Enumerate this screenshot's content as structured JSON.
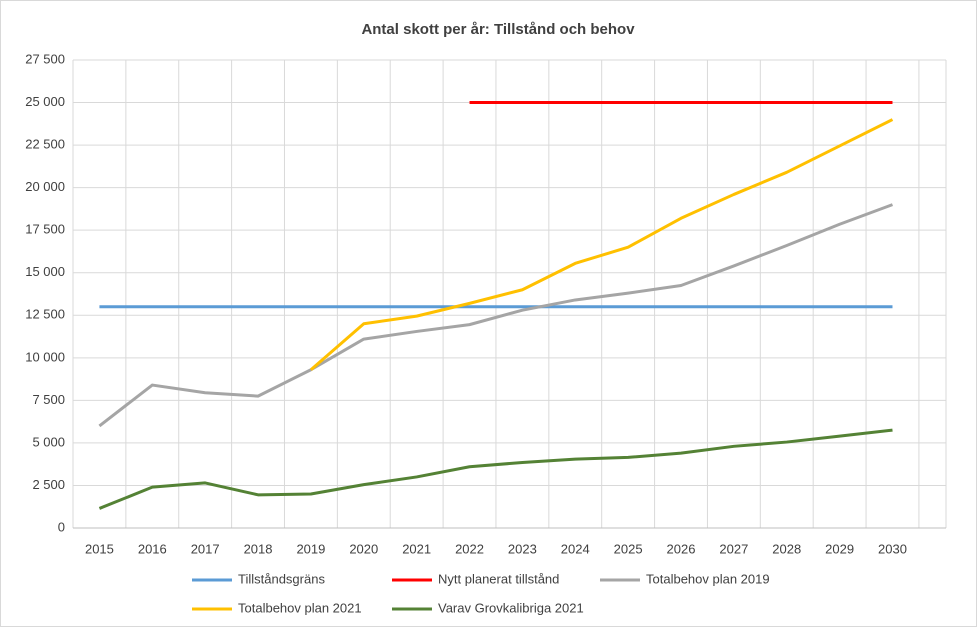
{
  "chart_data": {
    "type": "line",
    "title": "Antal skott per år: Tillstånd och behov",
    "categories": [
      "2015",
      "2016",
      "2017",
      "2018",
      "2019",
      "2020",
      "2021",
      "2022",
      "2023",
      "2024",
      "2025",
      "2026",
      "2027",
      "2028",
      "2029",
      "2030"
    ],
    "series": [
      {
        "name": "Tillståndsgräns",
        "color": "#5b9bd5",
        "values": [
          13000,
          13000,
          13000,
          13000,
          13000,
          13000,
          13000,
          13000,
          13000,
          13000,
          13000,
          13000,
          13000,
          13000,
          13000,
          13000
        ]
      },
      {
        "name": "Nytt planerat tillstånd",
        "color": "#ff0000",
        "values": [
          null,
          null,
          null,
          null,
          null,
          null,
          null,
          25000,
          25000,
          25000,
          25000,
          25000,
          25000,
          25000,
          25000,
          25000
        ]
      },
      {
        "name": "Totalbehov plan 2019",
        "color": "#a5a5a5",
        "values": [
          6000,
          8400,
          7950,
          7750,
          9300,
          11100,
          11550,
          11950,
          12800,
          13400,
          13800,
          14250,
          15400,
          16600,
          17850,
          19000
        ]
      },
      {
        "name": "Totalbehov plan 2021",
        "color": "#ffc000",
        "values": [
          null,
          null,
          null,
          null,
          9300,
          12000,
          12450,
          13200,
          14000,
          15550,
          16500,
          18200,
          19600,
          20900,
          22450,
          24000
        ]
      },
      {
        "name": "Varav Grovkalibriga 2021",
        "color": "#548235",
        "values": [
          1150,
          2400,
          2650,
          1950,
          2000,
          2550,
          3000,
          3600,
          3850,
          4050,
          4150,
          4400,
          4800,
          5050,
          5400,
          5750
        ]
      }
    ],
    "ylim": [
      0,
      27500
    ],
    "yticks": [
      0,
      {
        "value": 2500,
        "label": "2 500"
      },
      {
        "value": 5000,
        "label": "5 000"
      },
      {
        "value": 7500,
        "label": "7 500"
      },
      {
        "value": 10000,
        "label": "10 000"
      },
      {
        "value": 12500,
        "label": "12 500"
      },
      {
        "value": 15000,
        "label": "15 000"
      },
      {
        "value": 17500,
        "label": "17 500"
      },
      {
        "value": 20000,
        "label": "20 000"
      },
      {
        "value": 22500,
        "label": "22 500"
      },
      {
        "value": 25000,
        "label": "25 000"
      },
      {
        "value": 27500,
        "label": "27 500"
      }
    ],
    "grid": true,
    "legend": "bottom"
  }
}
